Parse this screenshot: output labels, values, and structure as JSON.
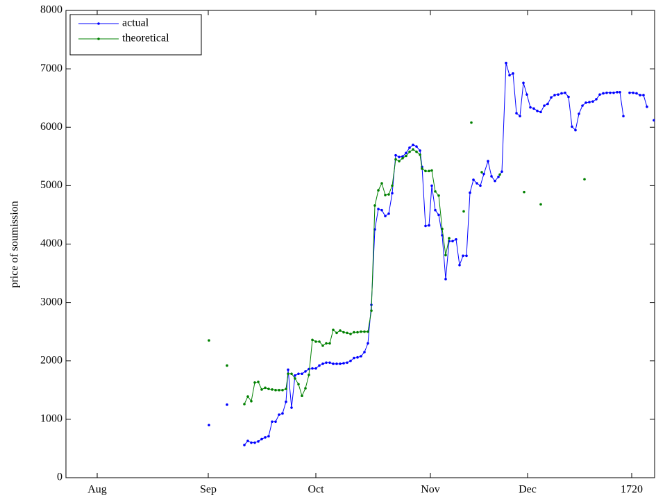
{
  "chart_data": {
    "type": "line",
    "ylabel": "price of soumission",
    "xlim": [
      -9,
      160.6
    ],
    "ylim": [
      0,
      8000
    ],
    "xticks": [
      {
        "value": 0,
        "label": "Aug"
      },
      {
        "value": 32,
        "label": "Sep"
      },
      {
        "value": 63,
        "label": "Oct"
      },
      {
        "value": 96,
        "label": "Nov"
      },
      {
        "value": 124,
        "label": "Dec"
      },
      {
        "value": 154,
        "label": "1720"
      }
    ],
    "yticks": [
      0,
      1000,
      2000,
      3000,
      4000,
      5000,
      6000,
      7000,
      8000
    ],
    "legend": "upper left",
    "series": [
      {
        "name": "actual",
        "color": "#0000ff",
        "x": [
          32.2,
          null,
          37.4,
          null,
          42.4,
          43.4,
          44.4,
          45.4,
          46.4,
          47.4,
          48.4,
          49.4,
          50.4,
          51.4,
          52.4,
          53.4,
          54.4,
          55,
          56,
          57,
          58,
          59,
          60,
          61,
          62,
          63,
          64,
          65,
          66,
          67,
          68,
          69,
          70,
          71,
          72,
          73,
          74,
          75,
          76,
          77,
          78,
          79,
          80,
          81,
          82,
          83,
          84,
          85,
          86,
          87,
          88,
          89,
          90,
          91,
          92,
          93,
          93.6,
          94.6,
          95.6,
          96.4,
          97.4,
          98.4,
          99.4,
          100.4,
          101.4,
          102.4,
          103.4,
          104.4,
          105.4,
          106.4,
          107.4,
          108.4,
          109.4,
          110.4,
          111.4,
          112.6,
          113.6,
          114.6,
          115.6,
          116.6,
          117.8,
          118.8,
          119.8,
          120.8,
          121.8,
          122.8,
          123.8,
          124.8,
          125.8,
          126.8,
          127.8,
          128.8,
          129.8,
          130.8,
          131.8,
          132.8,
          133.8,
          134.8,
          135.8,
          136.8,
          137.8,
          138.8,
          139.8,
          140.8,
          141.8,
          142.8,
          143.8,
          144.8,
          145.8,
          146.8,
          147.8,
          148.8,
          149.8,
          150.6,
          151.6,
          null,
          153.4,
          154.4,
          155.4,
          156.4,
          157.4,
          158.4,
          null,
          160.4
        ],
        "values": [
          900,
          null,
          1250,
          null,
          560,
          630,
          600,
          600,
          620,
          660,
          690,
          710,
          960,
          960,
          1080,
          1100,
          1300,
          1850,
          1200,
          1750,
          1780,
          1780,
          1820,
          1860,
          1870,
          1870,
          1920,
          1950,
          1970,
          1970,
          1950,
          1950,
          1950,
          1960,
          1970,
          2000,
          2050,
          2060,
          2080,
          2150,
          2300,
          2960,
          4250,
          4600,
          4580,
          4480,
          4520,
          4870,
          5520,
          5490,
          5500,
          5560,
          5650,
          5700,
          5670,
          5600,
          5320,
          4310,
          4320,
          5000,
          4580,
          4500,
          4150,
          3400,
          4050,
          4050,
          4080,
          3640,
          3800,
          3800,
          4880,
          5100,
          5040,
          5000,
          5200,
          5420,
          5160,
          5080,
          5150,
          5240,
          7100,
          6890,
          6920,
          6240,
          6190,
          6760,
          6560,
          6340,
          6320,
          6280,
          6260,
          6370,
          6400,
          6510,
          6550,
          6560,
          6580,
          6590,
          6520,
          6010,
          5950,
          6230,
          6370,
          6420,
          6430,
          6440,
          6480,
          6560,
          6580,
          6590,
          6590,
          6590,
          6600,
          6600,
          6190,
          null,
          6590,
          6590,
          6580,
          6550,
          6550,
          6350,
          null,
          6120
        ]
      },
      {
        "name": "theoretical",
        "color": "#008000",
        "x": [
          32.2,
          null,
          37.4,
          null,
          42.4,
          43.4,
          44.4,
          45.4,
          46.4,
          47.4,
          48.4,
          49.4,
          50.4,
          51.4,
          52.4,
          53.4,
          54.4,
          55,
          56,
          57,
          58,
          59,
          60,
          61,
          62,
          63,
          64,
          65,
          66,
          67,
          68,
          69,
          70,
          71,
          72,
          73,
          74,
          75,
          76,
          77,
          78,
          79,
          80,
          81,
          82,
          83,
          84,
          85,
          86,
          87,
          88,
          89,
          90,
          91,
          92,
          93,
          93.6,
          94.6,
          95.6,
          96.4,
          97.4,
          98.4,
          99.4,
          100.4,
          101.4,
          null,
          105.6,
          null,
          107.8,
          null,
          110.8,
          null,
          116,
          null,
          123,
          null,
          127.8,
          null,
          140.4
        ],
        "values": [
          2350,
          null,
          1920,
          null,
          1260,
          1390,
          1310,
          1630,
          1640,
          1510,
          1540,
          1520,
          1510,
          1500,
          1500,
          1500,
          1520,
          1780,
          1780,
          1700,
          1600,
          1400,
          1530,
          1760,
          2360,
          2330,
          2330,
          2260,
          2300,
          2300,
          2530,
          2480,
          2520,
          2490,
          2480,
          2460,
          2490,
          2490,
          2500,
          2500,
          2500,
          2860,
          4660,
          4920,
          5040,
          4840,
          4850,
          5000,
          5450,
          5420,
          5470,
          5510,
          5580,
          5620,
          5580,
          5530,
          5290,
          5250,
          5250,
          5260,
          4900,
          4830,
          4260,
          3810,
          4100,
          null,
          4560,
          null,
          6080,
          null,
          5230,
          null,
          5190,
          null,
          4890,
          null,
          4680,
          null,
          5110
        ]
      }
    ]
  }
}
